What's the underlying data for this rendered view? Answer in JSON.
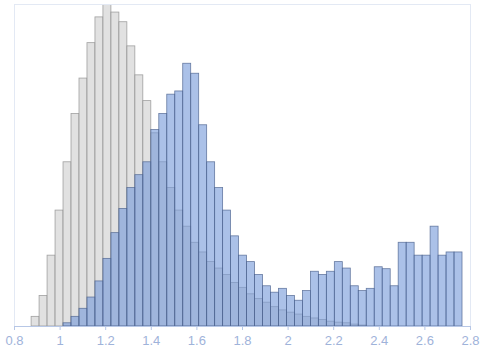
{
  "chart_data": {
    "type": "histogram",
    "bins": [
      0.875,
      0.91,
      0.945,
      0.98,
      1.015,
      1.05,
      1.085,
      1.12,
      1.155,
      1.19,
      1.225,
      1.26,
      1.295,
      1.33,
      1.365,
      1.4,
      1.435,
      1.47,
      1.505,
      1.54,
      1.575,
      1.61,
      1.645,
      1.68,
      1.715,
      1.75,
      1.785,
      1.82,
      1.855,
      1.89,
      1.925,
      1.96,
      1.995,
      2.03,
      2.065,
      2.1,
      2.135,
      2.17,
      2.205,
      2.24,
      2.275,
      2.31,
      2.345,
      2.38,
      2.415,
      2.45,
      2.485,
      2.52,
      2.555,
      2.59,
      2.625,
      2.66,
      2.695,
      2.73,
      2.765
    ],
    "series": [
      {
        "color": "#d9d9d9",
        "values": [
          3,
          9.5,
          22,
          36,
          51,
          66,
          77,
          88,
          96,
          100,
          97.5,
          94.5,
          87,
          78,
          70,
          60,
          51,
          43,
          36,
          31,
          26,
          23,
          20,
          18,
          16,
          13.5,
          12,
          10,
          8.5,
          7.4,
          6,
          5,
          4.3,
          3.7,
          3,
          2.5,
          2,
          1.5,
          1.2,
          1,
          0.6,
          0.3,
          0,
          0,
          0,
          0,
          0,
          0,
          0,
          0,
          0,
          0,
          0,
          0
        ]
      },
      {
        "color": "#7397d8",
        "values": [
          0,
          0,
          0,
          0,
          1,
          3,
          5.5,
          9,
          14,
          21,
          29,
          36.5,
          43,
          47,
          51,
          61,
          66,
          72,
          73,
          81.6,
          78.5,
          62.5,
          51,
          43,
          36,
          28,
          22,
          20,
          16,
          12.5,
          10.5,
          11.7,
          9.5,
          8,
          11,
          17,
          16,
          17,
          20,
          18,
          12.5,
          11,
          11.7,
          18.4,
          17.8,
          12.5,
          26,
          26,
          22,
          22,
          31,
          22,
          23,
          23
        ]
      }
    ],
    "xlim": [
      0.8,
      2.8
    ],
    "xticks": [
      0.8,
      1,
      1.2,
      1.4,
      1.6,
      1.8,
      2,
      2.2,
      2.4,
      2.6,
      2.8
    ],
    "ylim": [
      0,
      100
    ],
    "grid": false,
    "tick_labels": "x"
  }
}
